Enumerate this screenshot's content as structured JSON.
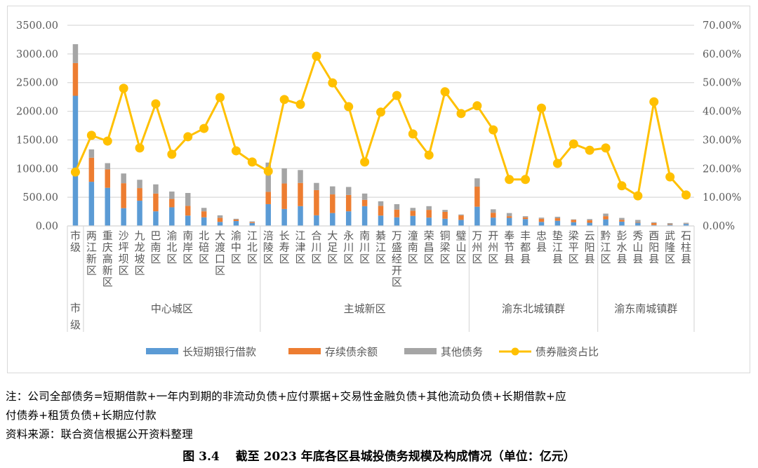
{
  "chart_data": {
    "type": "bar",
    "subtype": "stacked-bar-with-line",
    "title": "截至2023年底各区县城投债务规模及构成情况（单位：亿元）",
    "figure_number": "图 3.4",
    "xlabel": "",
    "ylabel": "",
    "ylim": [
      0,
      3500
    ],
    "y_ticks": [
      "0.00",
      "500.00",
      "1000.00",
      "1500.00",
      "2000.00",
      "2500.00",
      "3000.00",
      "3500.00"
    ],
    "y2lim": [
      0,
      70
    ],
    "y2_ticks": [
      "0.00%",
      "10.00%",
      "20.00%",
      "30.00%",
      "40.00%",
      "50.00%",
      "60.00%",
      "70.00%"
    ],
    "grid": true,
    "legend_position": "bottom",
    "categories": [
      "市级",
      "两江新区",
      "重庆高新区",
      "沙坪坝区",
      "九龙坡区",
      "巴南区",
      "渝北区",
      "南岸区",
      "北碚区",
      "大渡口区",
      "渝中区",
      "江北区",
      "涪陵区",
      "长寿区",
      "江津区",
      "合川区",
      "大足区",
      "永川区",
      "南川区",
      "綦江区",
      "万盛经开区",
      "潼南区",
      "荣昌区",
      "铜梁区",
      "璧山区",
      "万州区",
      "开州区",
      "奉节县",
      "丰都县",
      "忠县",
      "垫江县",
      "梁平区",
      "云阳县",
      "黔江区",
      "彭水县",
      "秀山县",
      "酉阳县",
      "武隆区",
      "石柱县"
    ],
    "groups": [
      {
        "name": "市级",
        "start": 0,
        "end": 0,
        "label_vertical": true
      },
      {
        "name": "中心城区",
        "start": 1,
        "end": 11
      },
      {
        "name": "主城新区",
        "start": 12,
        "end": 24
      },
      {
        "name": "渝东北城镇群",
        "start": 25,
        "end": 32
      },
      {
        "name": "渝东南城镇群",
        "start": 33,
        "end": 38
      }
    ],
    "series": [
      {
        "name": "长短期银行借款",
        "type": "bar",
        "axis": "left",
        "color": "#5b9bd5",
        "values": [
          2270,
          770,
          665,
          310,
          440,
          255,
          325,
          180,
          150,
          70,
          85,
          50,
          380,
          295,
          345,
          185,
          225,
          255,
          345,
          180,
          150,
          175,
          145,
          125,
          105,
          335,
          145,
          140,
          120,
          70,
          90,
          65,
          55,
          115,
          75,
          55,
          15,
          20,
          35
        ]
      },
      {
        "name": "存续债余额",
        "type": "bar",
        "axis": "left",
        "color": "#ed7d31",
        "values": [
          570,
          420,
          320,
          435,
          220,
          310,
          145,
          170,
          105,
          70,
          25,
          15,
          215,
          445,
          405,
          440,
          325,
          285,
          110,
          170,
          135,
          90,
          135,
          120,
          80,
          350,
          85,
          30,
          30,
          55,
          45,
          40,
          45,
          55,
          30,
          10,
          35,
          10,
          5
        ]
      },
      {
        "name": "其他债务",
        "type": "bar",
        "axis": "left",
        "color": "#a5a5a5",
        "values": [
          330,
          145,
          110,
          170,
          145,
          160,
          130,
          225,
          60,
          45,
          15,
          15,
          510,
          265,
          225,
          125,
          140,
          140,
          110,
          80,
          95,
          50,
          65,
          35,
          15,
          145,
          60,
          55,
          20,
          20,
          25,
          10,
          20,
          45,
          35,
          40,
          15,
          20,
          15
        ]
      },
      {
        "name": "债券融资占比",
        "type": "line",
        "axis": "right",
        "color": "#ffc000",
        "unit": "%",
        "values": [
          18.8,
          31.6,
          29.6,
          48.0,
          27.2,
          42.6,
          25.0,
          31.1,
          34.0,
          44.8,
          26.2,
          22.3,
          19.1,
          44.1,
          42.4,
          59.2,
          49.9,
          41.6,
          22.3,
          39.7,
          45.5,
          32.1,
          24.7,
          46.8,
          39.2,
          41.9,
          33.5,
          16.2,
          16.2,
          41.1,
          21.8,
          28.6,
          26.4,
          27.2,
          14.0,
          10.5,
          43.3,
          17.1,
          10.8
        ]
      }
    ]
  },
  "notes": {
    "line1": "注：公司全部债务=短期借款+一年内到期的非流动负债+应付票据+交易性金融负债+其他流动负债+长期借款+应",
    "line2": "付债券+租赁负债+长期应付款",
    "source": "资料来源：联合资信根据公开资料整理"
  },
  "caption": "图 3.4　 截至 2023 年底各区县城投债务规模及构成情况（单位：亿元）"
}
